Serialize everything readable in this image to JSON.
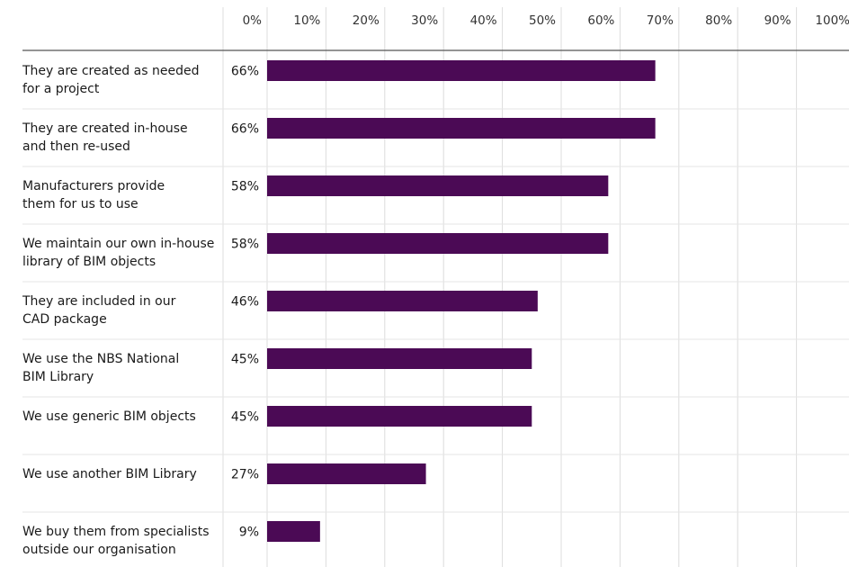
{
  "chart_data": {
    "type": "bar",
    "orientation": "horizontal",
    "title": "",
    "xlabel": "",
    "ylabel": "",
    "xlim": [
      0,
      100
    ],
    "grid": true,
    "tick_labels": [
      "0%",
      "10%",
      "20%",
      "30%",
      "40%",
      "50%",
      "60%",
      "70%",
      "80%",
      "90%",
      "100%"
    ],
    "categories": [
      [
        "They are created as needed",
        "for a project"
      ],
      [
        "They are created in-house",
        "and then re-used"
      ],
      [
        "Manufacturers provide",
        "them for us to use"
      ],
      [
        "We maintain our own in-house",
        "library of BIM objects"
      ],
      [
        "They are included in our",
        "CAD package"
      ],
      [
        "We use the NBS National",
        "BIM Library"
      ],
      [
        "We use generic BIM objects"
      ],
      [
        "We use another BIM Library"
      ],
      [
        "We buy them from specialists",
        "outside our organisation"
      ]
    ],
    "values": [
      66,
      66,
      58,
      58,
      46,
      45,
      45,
      27,
      9
    ],
    "value_labels": [
      "66%",
      "66%",
      "58%",
      "58%",
      "46%",
      "45%",
      "45%",
      "27%",
      "9%"
    ],
    "colors": {
      "bar": "#4b0a55",
      "grid": "#dcdcdc",
      "axis": "#555555"
    }
  }
}
